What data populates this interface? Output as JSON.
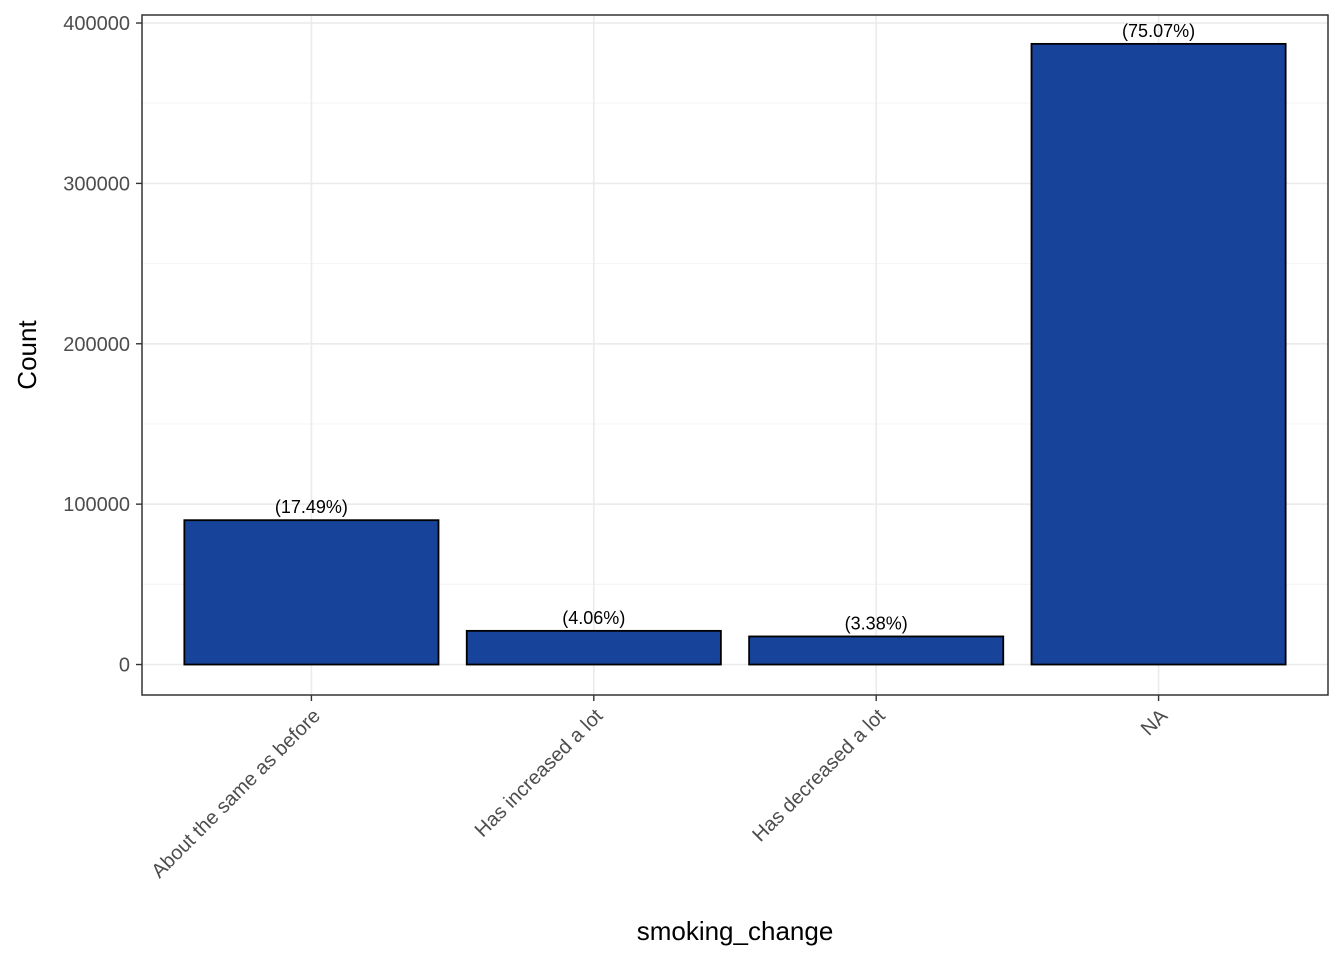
{
  "chart_data": {
    "type": "bar",
    "categories": [
      "About the same as before",
      "Has increased a lot",
      "Has decreased a lot",
      "NA"
    ],
    "values": [
      90000,
      21000,
      17500,
      387000
    ],
    "data_labels": [
      "(17.49%)",
      "(4.06%)",
      "(3.38%)",
      "(75.07%)"
    ],
    "xlabel": "smoking_change",
    "ylabel": "Count",
    "ylim": [
      -19000,
      405000
    ],
    "yticks": [
      0,
      100000,
      200000,
      300000,
      400000
    ],
    "ytick_labels": [
      "0",
      "100000",
      "200000",
      "300000",
      "400000"
    ],
    "grid": true,
    "legend": "none"
  },
  "colors": {
    "bar_fill": "#17449a",
    "bar_stroke": "#000000",
    "grid_major": "#ebebeb",
    "grid_minor": "#f5f5f5",
    "panel_border": "#333333"
  }
}
